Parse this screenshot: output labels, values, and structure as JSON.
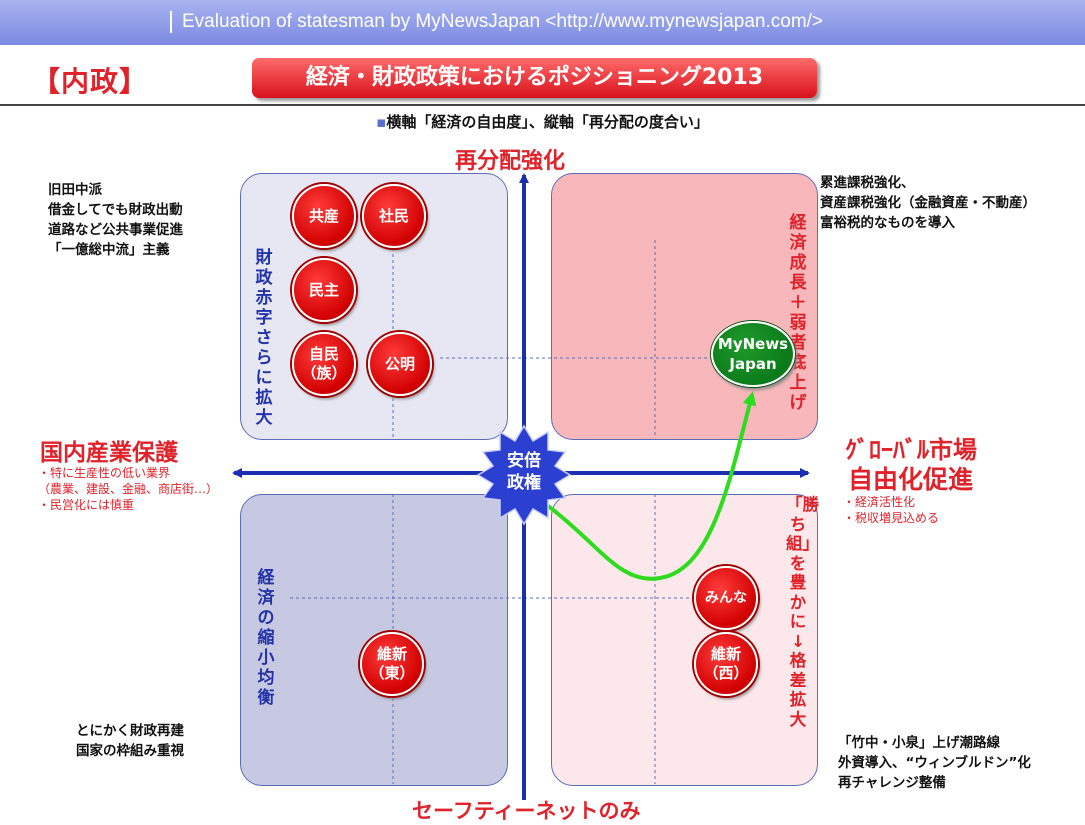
{
  "header": {
    "text": "Evaluation of statesman  by MyNewsJapan <http://www.mynewsjapan.com/>"
  },
  "domestic_label": "【内政】",
  "title": "経済・財政政策におけるポジショニング2013",
  "subtitle_bullet": "▪",
  "subtitle": "横軸「経済の自由度」、縦軸「再分配の度合い」",
  "axes": {
    "top": "再分配強化",
    "bottom": "セーフティーネットのみ",
    "left": "国内産業保護",
    "left_notes": "・特に生産性の低い業界\n（農業、建設、金融、商店街…）\n・民営化には慎重",
    "right_line1": "ｸﾞﾛｰﾊﾞﾙ市場",
    "right_line2": "自由化促進",
    "right_notes": "・経済活性化\n・税収増見込める"
  },
  "quadrants": {
    "top_left_vertical": "財政赤字さらに拡大",
    "top_right_vertical": "経済成長＋弱者底上げ",
    "bottom_left_vertical": "経済の縮小均衡",
    "bottom_right_vertical": "「勝ち組」を豊かに↓格差拡大"
  },
  "corner_notes": {
    "top_left": "旧田中派\n借金してでも財政出動\n道路など公共事業促進\n「一億総中流」主義",
    "top_right": "累進課税強化、\n資産課税強化（金融資産・不動産）\n富裕税的なものを導入",
    "bottom_left": "とにかく財政再建\n国家の枠組み重視",
    "bottom_right": "「竹中・小泉」上げ潮路線\n外資導入、“ウィンブルドン”化\n再チャレンジ整備"
  },
  "parties": {
    "kyosan": "共産",
    "shamin": "社民",
    "minshu": "民主",
    "jimin": "自民\n（族）",
    "komei": "公明",
    "minna": "みんな",
    "ishin_west": "維新\n（西）",
    "ishin_east": "維新\n（東）"
  },
  "mynews": {
    "line1": "MyNews",
    "line2": "Japan"
  },
  "abe": {
    "line1": "安倍",
    "line2": "政権"
  },
  "colors": {
    "header": "#8f9ce8",
    "accent_red": "#e0222a",
    "axis_blue": "#1c2fb0",
    "quad_top_left": "#e6e7f3",
    "quad_top_right": "#f8b8bb",
    "quad_bottom_left": "#c7c9e2",
    "quad_bottom_right": "#fce8ea",
    "arrow_green": "#2ddc1e",
    "mynews_green": "#0a7a1a"
  }
}
